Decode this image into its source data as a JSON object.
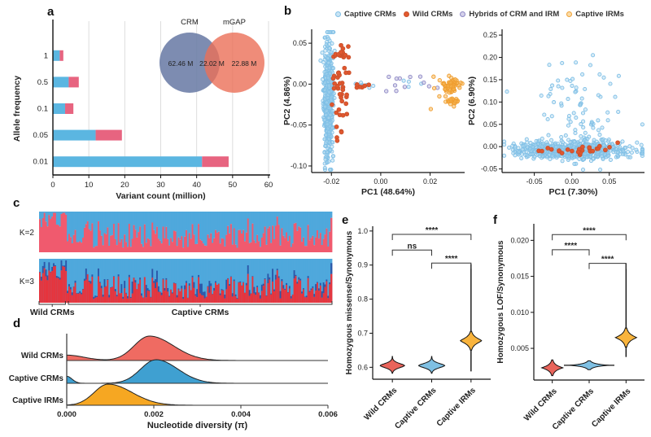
{
  "panels": {
    "a": {
      "label": "a"
    },
    "b": {
      "label": "b"
    },
    "c": {
      "label": "c"
    },
    "d": {
      "label": "d"
    },
    "e": {
      "label": "e"
    },
    "f": {
      "label": "f"
    }
  },
  "legend": {
    "items": [
      {
        "label": "Captive CRMs",
        "color": "#7FBFE6",
        "fill": "#C9E4F4",
        "filled": false
      },
      {
        "label": "Wild CRMs",
        "color": "#C9502B",
        "fill": "#E2592E",
        "filled": true
      },
      {
        "label": "Hybrids of CRM and IRM",
        "color": "#8D88C5",
        "fill": "#D4D1EA",
        "filled": false
      },
      {
        "label": "Captive IRMs",
        "color": "#F0A236",
        "fill": "#FBDCA8",
        "filled": false
      }
    ]
  },
  "chart_data": [
    {
      "id": "panel_a_variant_counts",
      "type": "bar",
      "orientation": "horizontal",
      "stacked": true,
      "categories": [
        "1",
        "0.5",
        "0.1",
        "0.05",
        "0.01"
      ],
      "series": [
        {
          "name": "blue",
          "color": "#5BB6E1",
          "values": [
            1.9,
            4.4,
            3.4,
            11.9,
            41.5
          ]
        },
        {
          "name": "red",
          "color": "#E76480",
          "values": [
            1.0,
            2.8,
            2.3,
            7.3,
            7.4
          ]
        }
      ],
      "xlabel": "Variant count (million)",
      "ylabel": "Allele frequency",
      "xlim": [
        0,
        60
      ],
      "xticks": [
        [
          0,
          "0"
        ],
        [
          10,
          "10"
        ],
        [
          20,
          "20"
        ],
        [
          30,
          "30"
        ],
        [
          40,
          "40"
        ],
        [
          50,
          "50"
        ],
        [
          60,
          "60"
        ]
      ],
      "grid": true
    },
    {
      "id": "panel_a_venn",
      "type": "venn",
      "sets": [
        {
          "label": "CRM",
          "value_label": "62.46 M",
          "color": "#6F80A9"
        },
        {
          "label": "mGAP",
          "value_label": "22.88 M",
          "color": "#EB6F58"
        }
      ],
      "overlap_label": "22.02 M"
    },
    {
      "id": "panel_b_pca_left",
      "type": "scatter",
      "xlabel": "PC1 (48.64%)",
      "ylabel": "PC2 (4.86%)",
      "xlim": [
        -0.028,
        0.034
      ],
      "ylim": [
        -0.108,
        0.067
      ],
      "xticks": [
        [
          -0.02,
          "-0.02"
        ],
        [
          0,
          "0.00"
        ],
        [
          0.02,
          "0.02"
        ]
      ],
      "yticks": [
        [
          0.05,
          "0.05"
        ],
        [
          0,
          "0.00"
        ],
        [
          -0.05,
          "-0.05"
        ],
        [
          -0.1,
          "-0.10"
        ]
      ],
      "seed": 11,
      "styles": {
        "Captive CRMs": {
          "stroke": "#7FBFE6",
          "fill": "#A8D4EE",
          "fo": 0.45,
          "r": 2.1
        },
        "Wild CRMs": {
          "stroke": "#C9502B",
          "fill": "#E0572F",
          "fo": 1,
          "r": 2.4
        },
        "Hybrids of CRM and IRM": {
          "stroke": "#8D88C5",
          "fill": "#B9B5DC",
          "fo": 0.5,
          "r": 2.2
        },
        "Captive IRMs": {
          "stroke": "#EF9D2F",
          "fill": "#F6B24B",
          "fo": 0.5,
          "r": 2.2
        }
      },
      "clusters": [
        {
          "group": "Captive CRMs",
          "n": 520,
          "cx": -0.0213,
          "cy": -0.02,
          "sx": 0.0009,
          "sy": 0.034
        },
        {
          "group": "Captive CRMs",
          "n": 10,
          "cx": -0.007,
          "cy": -0.002,
          "sx": 0.005,
          "sy": 0.003
        },
        {
          "group": "Captive CRMs",
          "n": 4,
          "cx": 0.013,
          "cy": 0.001,
          "sx": 0.003,
          "sy": 0.005
        },
        {
          "group": "Wild CRMs",
          "n": 40,
          "cx": -0.0165,
          "cy": -0.004,
          "sx": 0.0018,
          "sy": 0.028
        },
        {
          "group": "Wild CRMs",
          "n": 14,
          "cx": -0.016,
          "cy": 0.038,
          "sx": 0.0018,
          "sy": 0.005
        },
        {
          "group": "Wild CRMs",
          "n": 6,
          "cx": -0.009,
          "cy": -0.002,
          "sx": 0.0025,
          "sy": 0.0025
        },
        {
          "group": "Hybrids of CRM and IRM",
          "n": 9,
          "cx": 0.01,
          "cy": 0.003,
          "sx": 0.006,
          "sy": 0.005
        },
        {
          "group": "Hybrids of CRM and IRM",
          "n": 3,
          "cx": 0.019,
          "cy": -0.002,
          "sx": 0.002,
          "sy": 0.003
        },
        {
          "group": "Captive IRMs",
          "n": 55,
          "cx": 0.0285,
          "cy": -0.002,
          "sx": 0.0018,
          "sy": 0.005
        },
        {
          "group": "Captive IRMs",
          "n": 20,
          "cx": 0.029,
          "cy": -0.021,
          "sx": 0.0012,
          "sy": 0.002
        },
        {
          "group": "Captive IRMs",
          "n": 5,
          "cx": 0.023,
          "cy": -0.01,
          "sx": 0.003,
          "sy": 0.012
        }
      ]
    },
    {
      "id": "panel_b_pca_right",
      "type": "scatter",
      "xlabel": "PC1 (7.30%)",
      "ylabel": "PC2 (6.90%)",
      "xlim": [
        -0.093,
        0.097
      ],
      "ylim": [
        -0.058,
        0.263
      ],
      "xticks": [
        [
          -0.05,
          "-0.05"
        ],
        [
          0,
          "0.00"
        ],
        [
          0.05,
          "0.05"
        ]
      ],
      "yticks": [
        [
          0.25,
          "0.25"
        ],
        [
          0.2,
          "0.20"
        ],
        [
          0.15,
          "0.15"
        ],
        [
          0.1,
          "0.10"
        ],
        [
          0.05,
          "0.05"
        ],
        [
          0,
          "0.00"
        ],
        [
          -0.05,
          "-0.05"
        ]
      ],
      "seed": 7,
      "styles": {
        "Captive CRMs": {
          "stroke": "#7FBFE6",
          "fill": "#A8D4EE",
          "fo": 0.45,
          "r": 2.1
        },
        "Wild CRMs": {
          "stroke": "#C9502B",
          "fill": "#E0572F",
          "fo": 1,
          "r": 2.4
        }
      },
      "clusters": [
        {
          "group": "Captive CRMs",
          "n": 650,
          "cx": 0,
          "cy": -0.007,
          "sx": 0.036,
          "sy": 0.01
        },
        {
          "group": "Captive CRMs",
          "n": 75,
          "cx": 0.012,
          "cy": 0.1,
          "sx": 0.03,
          "sy": 0.055
        },
        {
          "group": "Wild CRMs",
          "n": 25,
          "cx": 0,
          "cy": -0.008,
          "sx": 0.034,
          "sy": 0.005
        }
      ]
    },
    {
      "id": "panel_c_admixture",
      "type": "structure-barplot",
      "n_individuals": 190,
      "wild_fraction": 0.09,
      "seed": 13,
      "rows": [
        {
          "label": "K=2",
          "colors": [
            "#4FA8DC",
            "#F05A6E"
          ]
        },
        {
          "label": "K=3",
          "colors": [
            "#4FA8DC",
            "#E8333B",
            "#2C57A8"
          ]
        }
      ],
      "group_labels": [
        {
          "label": "Wild CRMs",
          "span": [
            0,
            0.09
          ]
        },
        {
          "label": "Captive CRMs",
          "span": [
            0.1,
            1
          ]
        }
      ]
    },
    {
      "id": "panel_d_ridgeline",
      "type": "area",
      "subtype": "ridgeline",
      "xlabel": "Nucleotide diversity (π)",
      "xlim": [
        0,
        0.006
      ],
      "xticks": [
        [
          0,
          "0.000"
        ],
        [
          0.002,
          "0.002"
        ],
        [
          0.004,
          "0.004"
        ],
        [
          0.006,
          "0.006"
        ]
      ],
      "rows": [
        {
          "label": "Wild CRMs",
          "color": "#EF6B62",
          "mu": 0.0019,
          "sd_left": 0.00035,
          "sd_right": 0.00055,
          "bump_amp": 0.22,
          "bump_sd": 0.0004
        },
        {
          "label": "Captive CRMs",
          "color": "#3FA0D1",
          "mu": 0.00205,
          "sd_left": 0.00035,
          "sd_right": 0.0005,
          "bump_amp": 0.3,
          "bump_sd": 0.00012
        },
        {
          "label": "Captive IRMs",
          "color": "#F6A722",
          "mu": 0.00095,
          "sd_left": 0.00032,
          "sd_right": 0.00055,
          "bump_amp": 0,
          "bump_sd": 0.0002
        }
      ]
    },
    {
      "id": "panel_e_violin",
      "type": "violin",
      "ylabel": "Homozygous missense/Synonymous",
      "ylim": [
        0.565,
        1.014
      ],
      "yticks": [
        [
          0.6,
          "0.6"
        ],
        [
          0.7,
          "0.7"
        ],
        [
          0.8,
          "0.8"
        ],
        [
          0.9,
          "0.9"
        ],
        [
          1,
          "1.0"
        ]
      ],
      "categories": [
        "Wild CRMs",
        "Captive CRMs",
        "Captive IRMs"
      ],
      "violins": [
        {
          "label": "Wild CRMs",
          "color": "#E9645B",
          "center": 0.605,
          "spread": 0.0095,
          "halfwidth": 15,
          "p": 1.6,
          "range": 2.4,
          "tail": [
            0.586,
            0.633
          ]
        },
        {
          "label": "Captive CRMs",
          "color": "#7FC0E3",
          "center": 0.605,
          "spread": 0.0095,
          "halfwidth": 16,
          "p": 1.6,
          "range": 2.4,
          "tail": [
            0.586,
            0.633
          ]
        },
        {
          "label": "Captive IRMs",
          "color": "#F9B43D",
          "center": 0.678,
          "spread": 0.0125,
          "halfwidth": 13,
          "p": 1.3,
          "range": 2.2,
          "tail": [
            0.588,
            0.903
          ]
        }
      ],
      "comparisons": [
        {
          "from": 0,
          "to": 2,
          "label": "****",
          "y": 0.99
        },
        {
          "from": 0,
          "to": 1,
          "label": "ns",
          "y": 0.944
        },
        {
          "from": 1,
          "to": 2,
          "label": "****",
          "y": 0.906
        }
      ]
    },
    {
      "id": "panel_f_violin",
      "type": "violin",
      "ylabel": "Homozygous LOF/Synonymous",
      "ylim": [
        0.0006,
        0.0223
      ],
      "yticks": [
        [
          0.005,
          "0.005"
        ],
        [
          0.01,
          "0.010"
        ],
        [
          0.015,
          "0.015"
        ],
        [
          0.02,
          "0.020"
        ]
      ],
      "categories": [
        "Wild CRMs",
        "Captive CRMs",
        "Captive IRMs"
      ],
      "violins": [
        {
          "label": "Wild CRMs",
          "color": "#E9645B",
          "center": 0.0023,
          "spread": 0.00042,
          "halfwidth": 13,
          "p": 1.1,
          "range": 2.6,
          "tail": [
            0.0016,
            0.0031
          ]
        },
        {
          "label": "Captive CRMs",
          "color": "#7FC0E3",
          "center": 0.00265,
          "spread": 0.00022,
          "halfwidth": 24,
          "p": 1.0,
          "range": 2.8,
          "whisker": 31
        },
        {
          "label": "Captive IRMs",
          "color": "#F9B43D",
          "center": 0.0065,
          "spread": 0.00055,
          "halfwidth": 13,
          "p": 1.1,
          "range": 2.4,
          "tail": [
            0.0038,
            0.0168
          ]
        }
      ],
      "comparisons": [
        {
          "from": 0,
          "to": 2,
          "label": "****",
          "y": 0.0208
        },
        {
          "from": 0,
          "to": 1,
          "label": "****",
          "y": 0.0187
        },
        {
          "from": 1,
          "to": 2,
          "label": "****",
          "y": 0.0168
        }
      ]
    }
  ]
}
